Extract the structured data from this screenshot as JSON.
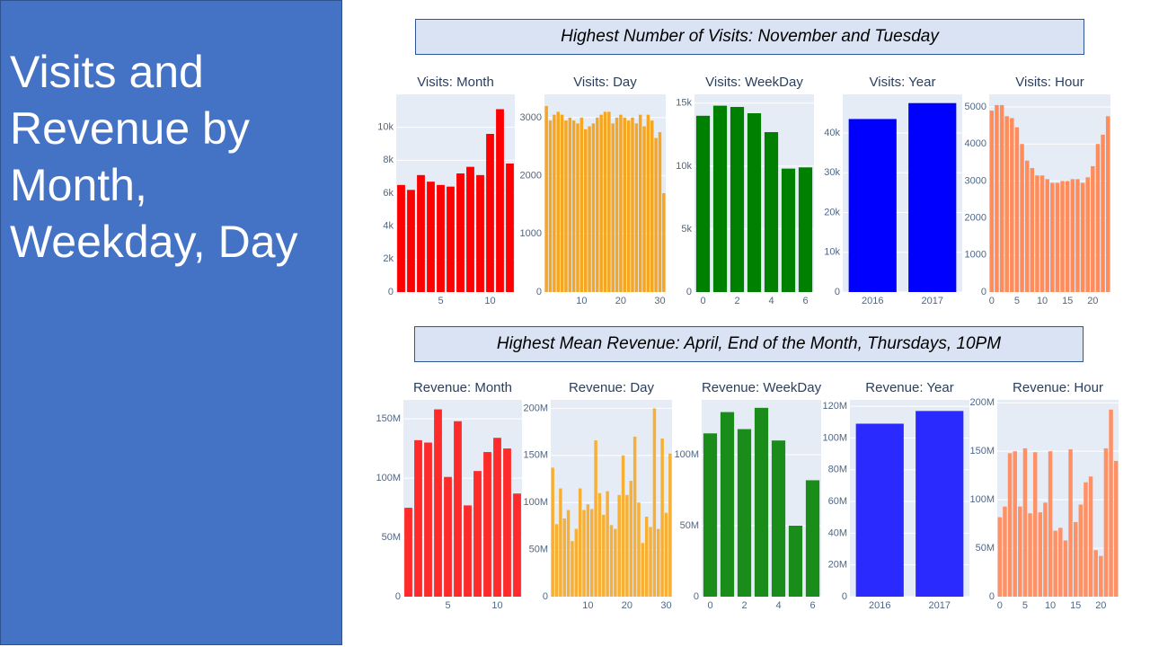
{
  "title": "Visits and Revenue by Month, Weekday, Day",
  "banners": [
    "Highest  Number of Visits: November and Tuesday",
    "Highest Mean Revenue: April, End of the Month, Thursdays, 10PM"
  ],
  "chart_data": [
    {
      "type": "bar",
      "title": "Visits: Month",
      "color": "#ff0000",
      "x": [
        1,
        2,
        3,
        4,
        5,
        6,
        7,
        8,
        9,
        10,
        11,
        12
      ],
      "values": [
        6500,
        6200,
        7100,
        6700,
        6500,
        6400,
        7200,
        7600,
        7100,
        9600,
        11100,
        7800
      ],
      "xlim": [
        0.5,
        12.5
      ],
      "xticks": [
        5,
        10
      ],
      "ylim": [
        0,
        12000
      ],
      "yticks": [
        0,
        {
          "value": 2000,
          "label": "2k"
        },
        {
          "value": 4000,
          "label": "4k"
        },
        {
          "value": 6000,
          "label": "6k"
        },
        {
          "value": 8000,
          "label": "8k"
        },
        {
          "value": 10000,
          "label": "10k"
        }
      ]
    },
    {
      "type": "bar",
      "title": "Visits: Day",
      "color": "#f5a623",
      "x": [
        1,
        2,
        3,
        4,
        5,
        6,
        7,
        8,
        9,
        10,
        11,
        12,
        13,
        14,
        15,
        16,
        17,
        18,
        19,
        20,
        21,
        22,
        23,
        24,
        25,
        26,
        27,
        28,
        29,
        30,
        31
      ],
      "values": [
        3200,
        2950,
        3050,
        3100,
        3050,
        2950,
        3000,
        2950,
        2900,
        3000,
        2800,
        2850,
        2900,
        3000,
        3050,
        3100,
        3100,
        2900,
        3000,
        3050,
        3000,
        2950,
        3000,
        2900,
        3050,
        2850,
        3050,
        2950,
        2650,
        2750,
        1700
      ],
      "xlim": [
        0.5,
        31.5
      ],
      "xticks": [
        10,
        20,
        30
      ],
      "ylim": [
        0,
        3400
      ],
      "yticks": [
        0,
        1000,
        2000,
        3000
      ]
    },
    {
      "type": "bar",
      "title": "Visits: WeekDay",
      "color": "#008000",
      "x": [
        0,
        1,
        2,
        3,
        4,
        5,
        6
      ],
      "values": [
        14000,
        14800,
        14700,
        14200,
        12700,
        9800,
        9900
      ],
      "xlim": [
        -0.5,
        6.5
      ],
      "xticks": [
        0,
        2,
        4,
        6
      ],
      "ylim": [
        0,
        15700
      ],
      "yticks": [
        0,
        {
          "value": 5000,
          "label": "5k"
        },
        {
          "value": 10000,
          "label": "10k"
        },
        {
          "value": 15000,
          "label": "15k"
        }
      ]
    },
    {
      "type": "bar",
      "title": "Visits: Year",
      "color": "#0000ff",
      "categories": [
        "2016",
        "2017"
      ],
      "values": [
        43500,
        47500
      ],
      "ylim": [
        0,
        49700
      ],
      "yticks": [
        0,
        {
          "value": 10000,
          "label": "10k"
        },
        {
          "value": 20000,
          "label": "20k"
        },
        {
          "value": 30000,
          "label": "30k"
        },
        {
          "value": 40000,
          "label": "40k"
        }
      ]
    },
    {
      "type": "bar",
      "title": "Visits: Hour",
      "color": "#ff8c5a",
      "x": [
        0,
        1,
        2,
        3,
        4,
        5,
        6,
        7,
        8,
        9,
        10,
        11,
        12,
        13,
        14,
        15,
        16,
        17,
        18,
        19,
        20,
        21,
        22,
        23
      ],
      "values": [
        4900,
        5050,
        5050,
        4750,
        4700,
        4450,
        4000,
        3550,
        3350,
        3150,
        3150,
        3050,
        2950,
        2950,
        3000,
        3000,
        3050,
        3050,
        2950,
        3100,
        3400,
        4000,
        4250,
        4750
      ],
      "xlim": [
        -0.5,
        23.5
      ],
      "xticks": [
        0,
        5,
        10,
        15,
        20
      ],
      "ylim": [
        0,
        5340
      ],
      "yticks": [
        0,
        1000,
        2000,
        3000,
        4000,
        5000
      ]
    },
    {
      "type": "bar",
      "title": "Revenue: Month",
      "color": "#ff2a2a",
      "x": [
        1,
        2,
        3,
        4,
        5,
        6,
        7,
        8,
        9,
        10,
        11,
        12
      ],
      "values": [
        75000000,
        132000000,
        130000000,
        158000000,
        101000000,
        148000000,
        77000000,
        106000000,
        122000000,
        134000000,
        125000000,
        87000000
      ],
      "xlim": [
        0.5,
        12.5
      ],
      "xticks": [
        5,
        10
      ],
      "ylim": [
        0,
        166000000
      ],
      "yticks": [
        0,
        {
          "value": 50000000,
          "label": "50M"
        },
        {
          "value": 100000000,
          "label": "100M"
        },
        {
          "value": 150000000,
          "label": "150M"
        }
      ]
    },
    {
      "type": "bar",
      "title": "Revenue: Day",
      "color": "#f7b035",
      "x": [
        1,
        2,
        3,
        4,
        5,
        6,
        7,
        8,
        9,
        10,
        11,
        12,
        13,
        14,
        15,
        16,
        17,
        18,
        19,
        20,
        21,
        22,
        23,
        24,
        25,
        26,
        27,
        28,
        29,
        30,
        31
      ],
      "values": [
        137000000,
        77000000,
        115000000,
        83000000,
        92000000,
        59000000,
        72000000,
        115000000,
        92000000,
        98000000,
        93000000,
        166000000,
        110000000,
        87000000,
        112000000,
        76000000,
        72000000,
        108000000,
        150000000,
        108000000,
        123000000,
        170000000,
        100000000,
        57000000,
        85000000,
        74000000,
        200000000,
        72000000,
        168000000,
        89000000,
        152000000
      ],
      "xlim": [
        0.5,
        31.5
      ],
      "xticks": [
        10,
        20,
        30
      ],
      "ylim": [
        0,
        209000000
      ],
      "yticks": [
        0,
        {
          "value": 50000000,
          "label": "50M"
        },
        {
          "value": 100000000,
          "label": "100M"
        },
        {
          "value": 150000000,
          "label": "150M"
        },
        {
          "value": 200000000,
          "label": "200M"
        }
      ]
    },
    {
      "type": "bar",
      "title": "Revenue: WeekDay",
      "color": "#1a8c1a",
      "x": [
        0,
        1,
        2,
        3,
        4,
        5,
        6
      ],
      "values": [
        115000000,
        130000000,
        118000000,
        133000000,
        110000000,
        50000000,
        82000000
      ],
      "xlim": [
        -0.5,
        6.5
      ],
      "xticks": [
        0,
        2,
        4,
        6
      ],
      "ylim": [
        0,
        138600000
      ],
      "yticks": [
        0,
        {
          "value": 50000000,
          "label": "50M"
        },
        {
          "value": 100000000,
          "label": "100M"
        }
      ]
    },
    {
      "type": "bar",
      "title": "Revenue: Year",
      "color": "#2a2aff",
      "categories": [
        "2016",
        "2017"
      ],
      "values": [
        109000000,
        117000000
      ],
      "ylim": [
        0,
        124000000
      ],
      "yticks": [
        0,
        {
          "value": 20000000,
          "label": "20M"
        },
        {
          "value": 40000000,
          "label": "40M"
        },
        {
          "value": 60000000,
          "label": "60M"
        },
        {
          "value": 80000000,
          "label": "80M"
        },
        {
          "value": 100000000,
          "label": "100M"
        },
        {
          "value": 120000000,
          "label": "120M"
        }
      ]
    },
    {
      "type": "bar",
      "title": "Revenue: Hour",
      "color": "#ff9166",
      "x": [
        0,
        1,
        2,
        3,
        4,
        5,
        6,
        7,
        8,
        9,
        10,
        11,
        12,
        13,
        14,
        15,
        16,
        17,
        18,
        19,
        20,
        21,
        22,
        23
      ],
      "values": [
        82000000,
        93000000,
        148000000,
        150000000,
        93000000,
        153000000,
        86000000,
        149000000,
        87000000,
        97000000,
        150000000,
        68000000,
        71000000,
        58000000,
        152000000,
        77000000,
        95000000,
        118000000,
        124000000,
        48000000,
        42000000,
        153000000,
        193000000,
        140000000
      ],
      "xlim": [
        -0.5,
        23.5
      ],
      "xticks": [
        0,
        5,
        10,
        15,
        20
      ],
      "ylim": [
        0,
        203000000
      ],
      "yticks": [
        0,
        {
          "value": 50000000,
          "label": "50M"
        },
        {
          "value": 100000000,
          "label": "100M"
        },
        {
          "value": 150000000,
          "label": "150M"
        },
        {
          "value": 200000000,
          "label": "200M"
        }
      ]
    }
  ]
}
